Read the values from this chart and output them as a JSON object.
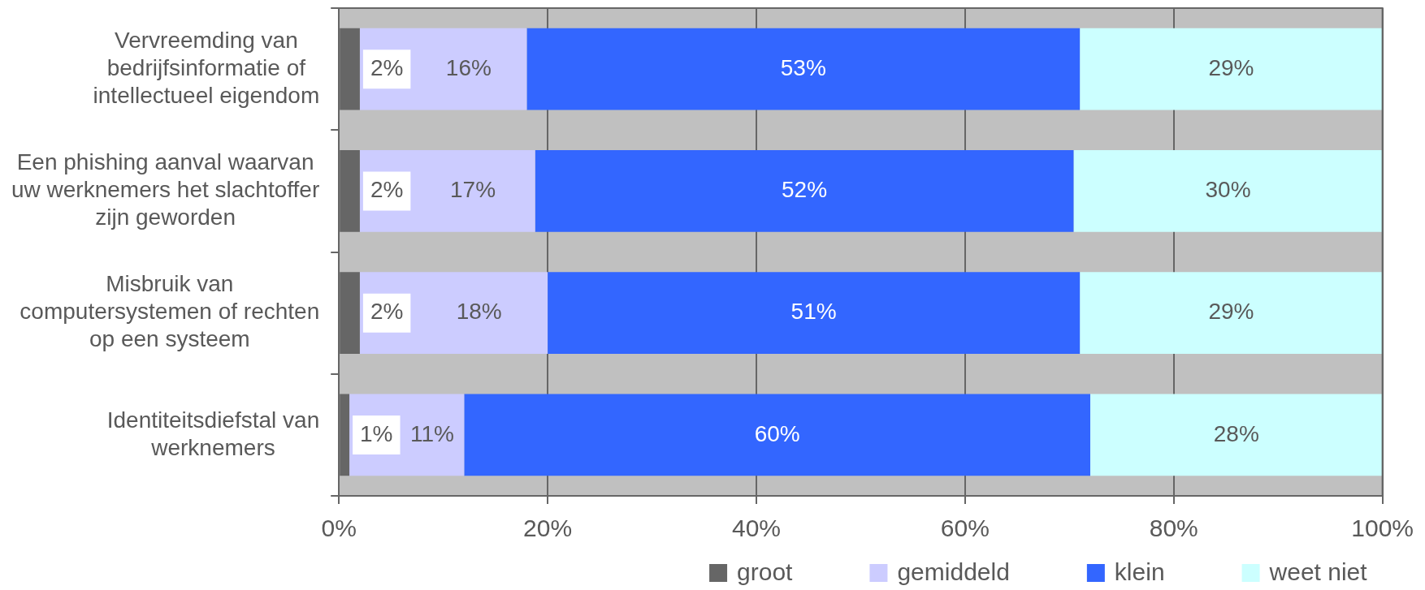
{
  "chart_data": {
    "type": "bar",
    "orientation": "horizontal",
    "stacked": true,
    "categories": [
      "Vervreemding van\nbedrijfsinformatie of\nintellectueel eigendom",
      "Een phishing aanval waarvan\nuw werknemers het slachtoffer\nzijn geworden",
      "Misbruik van\ncomputersystemen of rechten\nop een systeem",
      "Identiteitsdiefstal van\nwerknemers"
    ],
    "series": [
      {
        "name": "groot",
        "color": "#666666",
        "values": [
          2,
          2,
          2,
          1
        ],
        "value_labels": [
          "2%",
          "2%",
          "2%",
          "1%"
        ]
      },
      {
        "name": "gemiddeld",
        "color": "#ccccff",
        "values": [
          16,
          16.8,
          18,
          11
        ],
        "value_labels": [
          "16%",
          "17%",
          "18%",
          "11%"
        ]
      },
      {
        "name": "klein",
        "color": "#3366ff",
        "values": [
          53,
          51.6,
          51,
          60
        ],
        "value_labels": [
          "53%",
          "52%",
          "51%",
          "60%"
        ]
      },
      {
        "name": "weet niet",
        "color": "#ccffff",
        "values": [
          29,
          29.6,
          29,
          28
        ],
        "value_labels": [
          "29%",
          "30%",
          "29%",
          "28%"
        ]
      }
    ],
    "xlim": [
      0,
      100
    ],
    "xticks": [
      {
        "value": 0,
        "label": "0%"
      },
      {
        "value": 20,
        "label": "20%"
      },
      {
        "value": 40,
        "label": "40%"
      },
      {
        "value": 60,
        "label": "60%"
      },
      {
        "value": 80,
        "label": "80%"
      },
      {
        "value": 100,
        "label": "100%"
      }
    ],
    "grid": "x",
    "legend": "bottom"
  }
}
